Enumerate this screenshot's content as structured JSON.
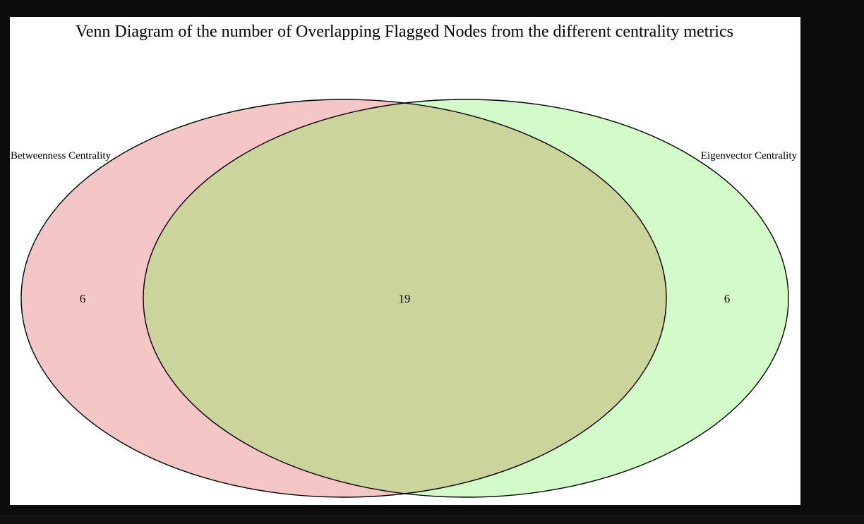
{
  "title": "Venn Diagram of the number of Overlapping Flagged Nodes from the different centrality metrics",
  "sets": [
    {
      "label": "Betweenness Centrality",
      "only_count": "6",
      "fill": "#f5c6c6"
    },
    {
      "label": "Eigenvector Centrality",
      "only_count": "6",
      "fill": "#d3fbc9"
    }
  ],
  "intersection": {
    "count": "19",
    "fill": "#cad49b"
  },
  "stroke_color": "#000000"
}
